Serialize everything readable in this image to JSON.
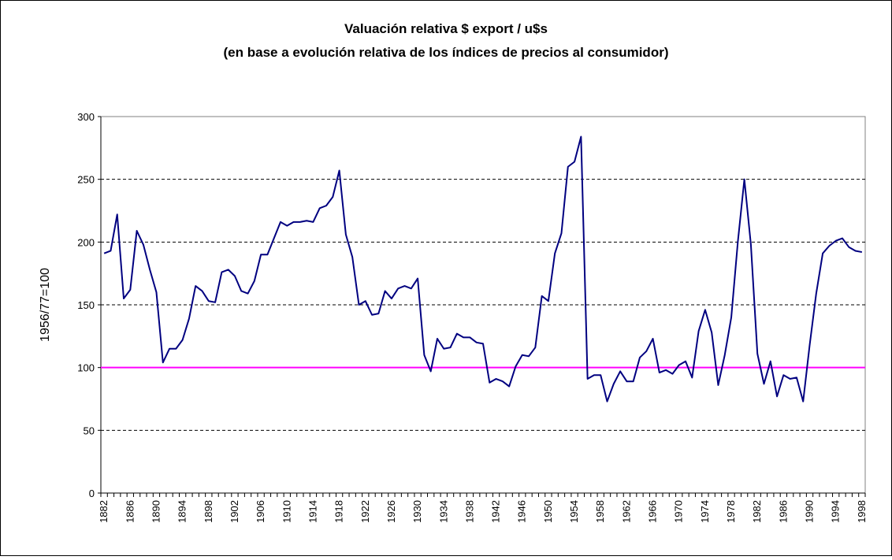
{
  "chart_data": {
    "type": "line",
    "title": "Valuación relativa $ export / u$s",
    "subtitle": "(en base a evolución relativa de los índices de precios al consumidor)",
    "y_label": "1956/77=100",
    "categories": [
      "1882",
      null,
      null,
      null,
      "1886",
      null,
      null,
      null,
      "1890",
      null,
      null,
      null,
      "1894",
      null,
      null,
      null,
      "1898",
      null,
      null,
      null,
      "1902",
      null,
      null,
      null,
      "1906",
      null,
      null,
      null,
      "1910",
      null,
      null,
      null,
      "1914",
      null,
      null,
      null,
      "1918",
      null,
      null,
      null,
      "1922",
      null,
      null,
      null,
      "1926",
      null,
      null,
      null,
      "1930",
      null,
      null,
      null,
      "1934",
      null,
      null,
      null,
      "1938",
      null,
      null,
      null,
      "1942",
      null,
      null,
      null,
      "1946",
      null,
      null,
      null,
      "1950",
      null,
      null,
      null,
      "1954",
      null,
      null,
      null,
      "1958",
      null,
      null,
      null,
      "1962",
      null,
      null,
      null,
      "1966",
      null,
      null,
      null,
      "1970",
      null,
      null,
      null,
      "1974",
      null,
      null,
      null,
      "1978",
      null,
      null,
      null,
      "1982",
      null,
      null,
      null,
      "1986",
      null,
      null,
      null,
      "1990",
      null,
      null,
      null,
      "1994",
      null,
      null,
      null,
      "1998"
    ],
    "series": [
      {
        "color": "#000080",
        "values": [
          191,
          193,
          222,
          155,
          162,
          209,
          198,
          178,
          160,
          104,
          115,
          115,
          122,
          139,
          165,
          161,
          153,
          152,
          176,
          178,
          173,
          161,
          159,
          169,
          190,
          190,
          203,
          216,
          213,
          216,
          216,
          217,
          216,
          227,
          229,
          236,
          257,
          206,
          188,
          150,
          153,
          142,
          143,
          161,
          155,
          163,
          165,
          163,
          171,
          110,
          97,
          123,
          115,
          116,
          127,
          124,
          124,
          120,
          119,
          88,
          91,
          89,
          85,
          101,
          110,
          109,
          116,
          157,
          153,
          191,
          207,
          260,
          264,
          284,
          91,
          94,
          94,
          73,
          87,
          97,
          89,
          89,
          108,
          113,
          123,
          96,
          98,
          95,
          102,
          105,
          92,
          129,
          146,
          128,
          86,
          110,
          140,
          200,
          250,
          198,
          111,
          87,
          105,
          77,
          94,
          91,
          92,
          73,
          118,
          159,
          191,
          197,
          201,
          203,
          196,
          193,
          192
        ]
      }
    ],
    "reference_line": {
      "value": 100,
      "color": "#ff00ff"
    },
    "ylim": [
      0,
      300
    ],
    "yticks": [
      0,
      50,
      100,
      150,
      200,
      250,
      300
    ],
    "grid": true
  }
}
